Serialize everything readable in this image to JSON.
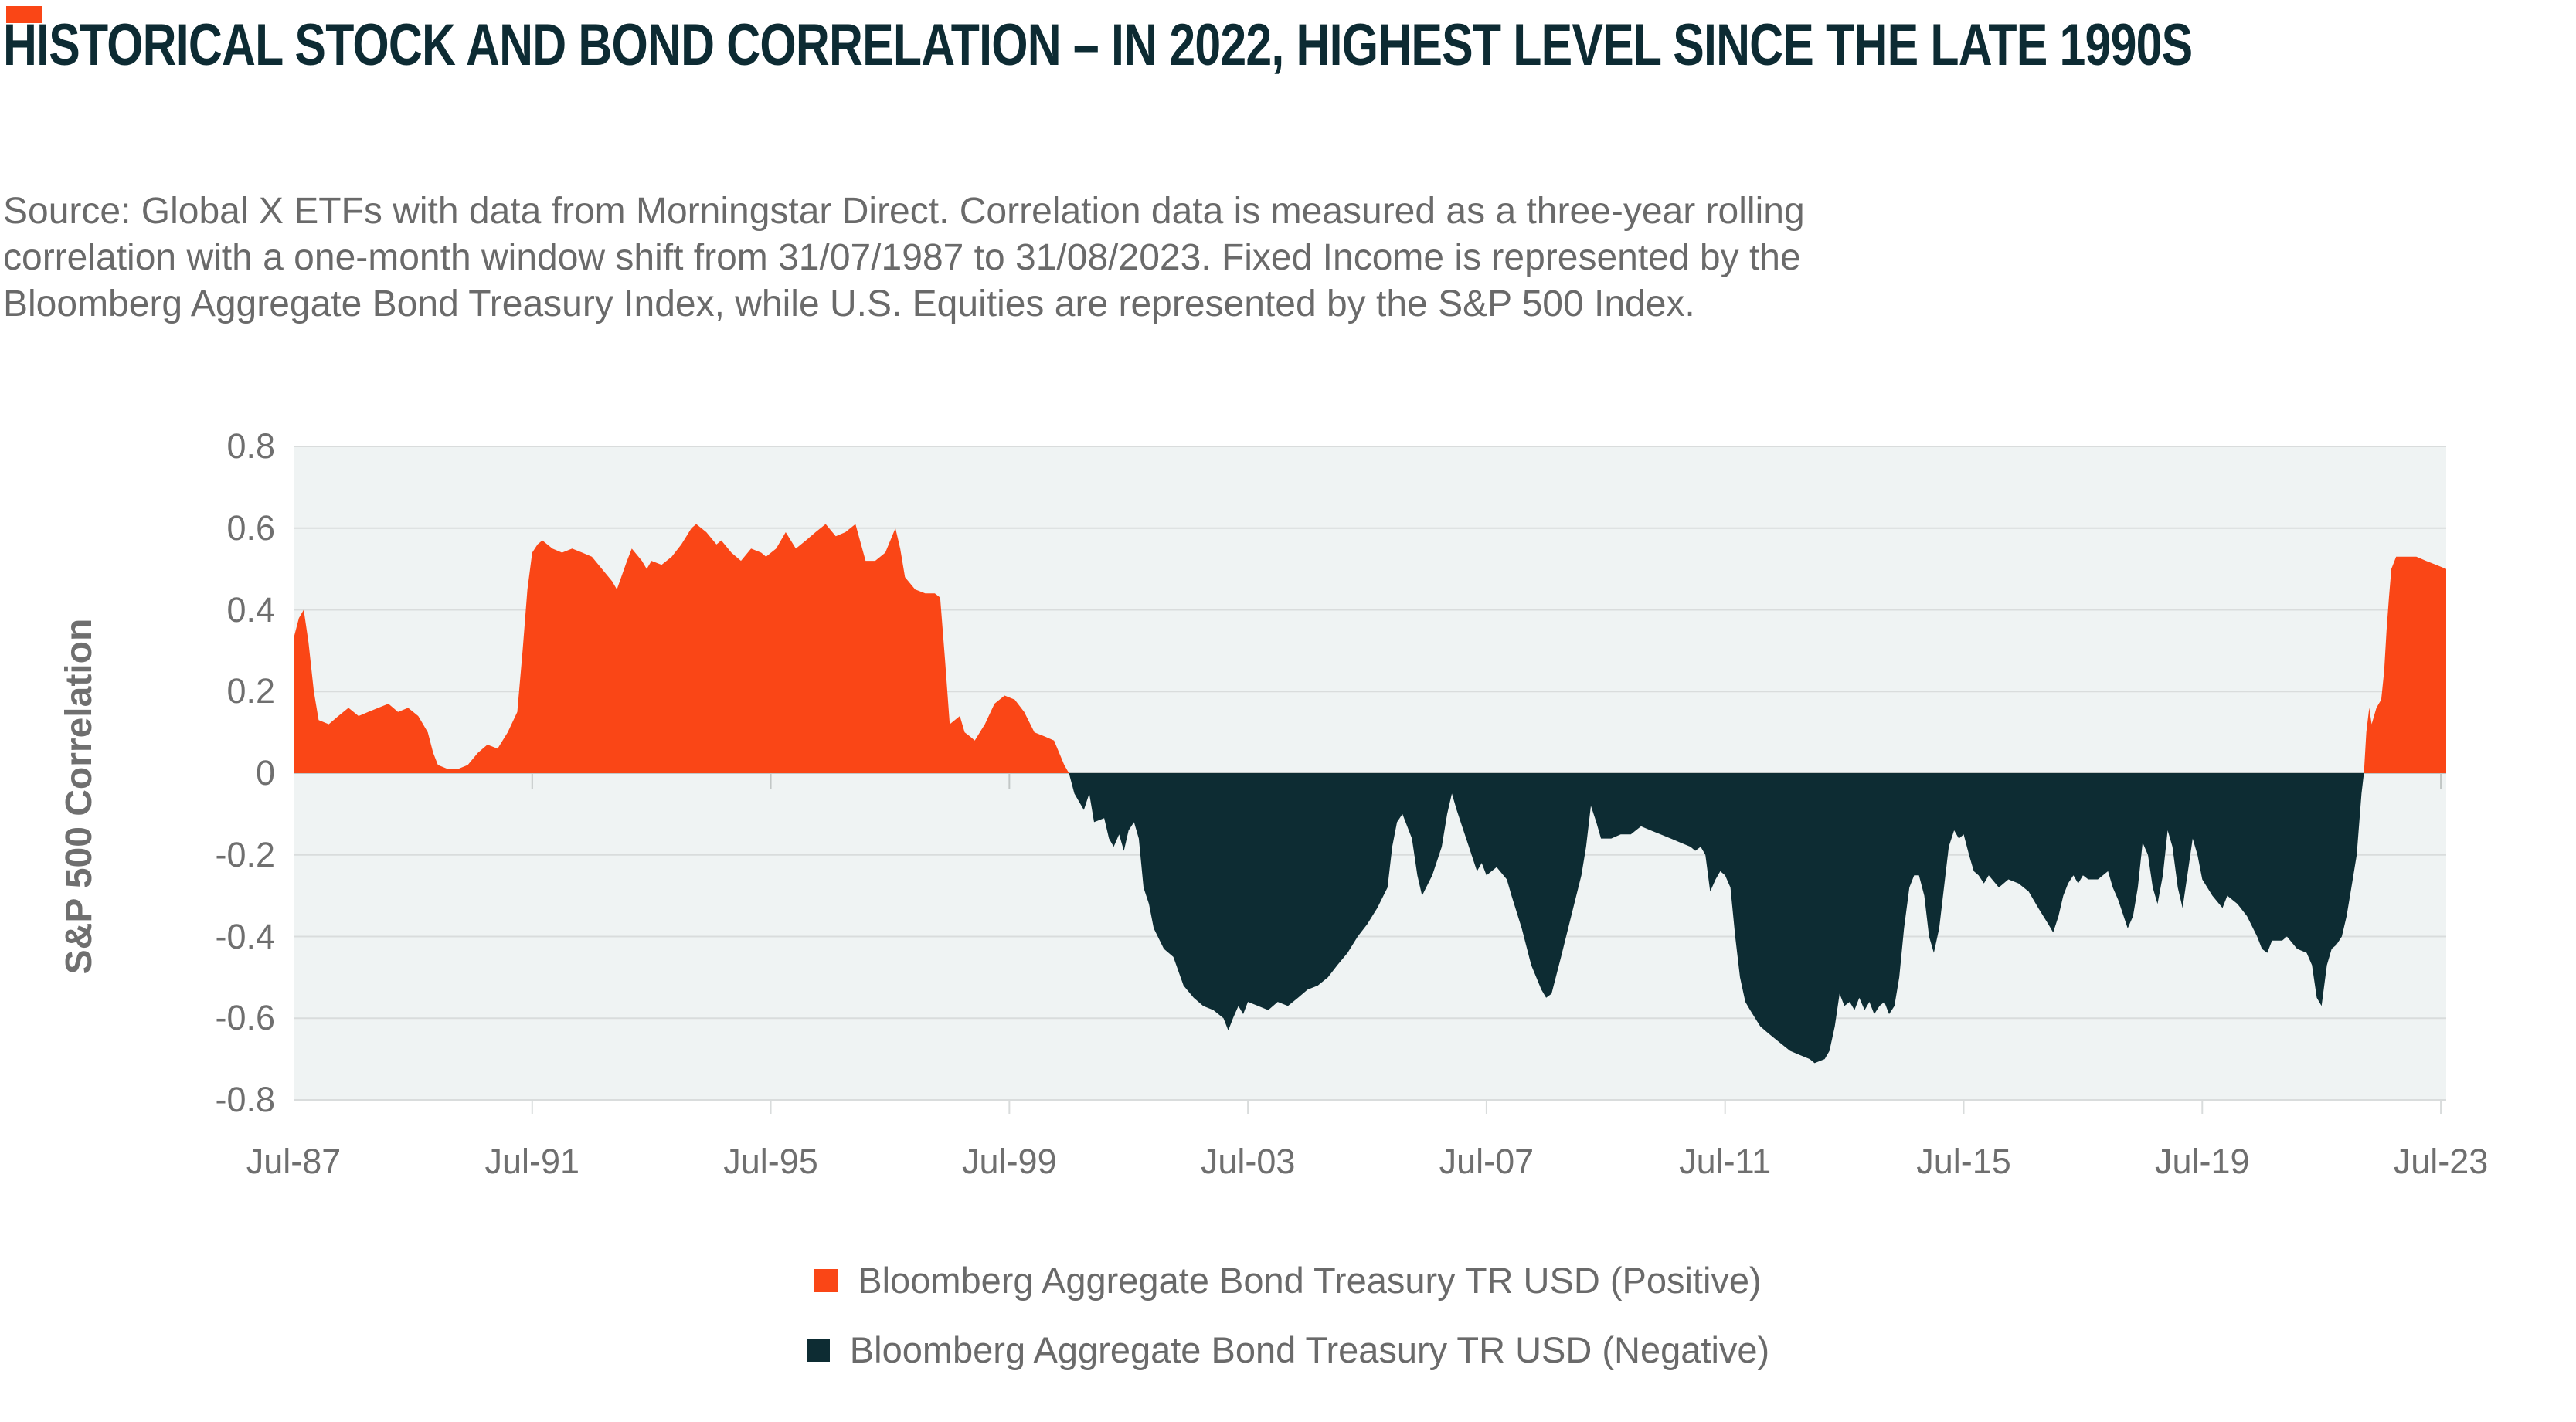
{
  "header": {
    "title": "HISTORICAL STOCK AND BOND CORRELATION – IN 2022, HIGHEST LEVEL SINCE THE LATE 1990S",
    "source_lines": [
      "Source: Global X ETFs with data from Morningstar Direct. Correlation data is measured as a three-year rolling",
      "correlation with a one-month window shift from 31/07/1987 to 31/08/2023. Fixed Income is represented by the",
      "Bloomberg Aggregate Bond Treasury Index, while U.S. Equities are represented by the S&P 500 Index."
    ]
  },
  "colors": {
    "accent_orange": "#FA4616",
    "dark_navy": "#0D2C33",
    "title_text": "#0D2B33",
    "body_text": "#6A6A6A",
    "axis_text": "#6F6F6F",
    "plot_bg": "#EFF3F3",
    "gridline": "#D9DCDC",
    "zero_line": "#C2C7C6"
  },
  "chart_data": {
    "type": "area",
    "title": "",
    "xlabel": "",
    "ylabel": "S&P 500 Correlation",
    "ylim": [
      -0.8,
      0.8
    ],
    "grid": true,
    "legend_position": "bottom",
    "y_ticks": [
      "0.8",
      "0.6",
      "0.4",
      "0.2",
      "0",
      "-0.2",
      "-0.4",
      "-0.6",
      "-0.8"
    ],
    "x_tick_labels": [
      "Jul-87",
      "Jul-91",
      "Jul-95",
      "Jul-99",
      "Jul-03",
      "Jul-07",
      "Jul-11",
      "Jul-15",
      "Jul-19",
      "Jul-23"
    ],
    "x_tick_years": [
      1987.58,
      1991.58,
      1995.58,
      1999.58,
      2003.58,
      2007.58,
      2011.58,
      2015.58,
      2019.58,
      2023.58
    ],
    "x_range": [
      1987.58,
      2023.67
    ],
    "series": [
      {
        "name": "Bloomberg Aggregate Bond Treasury TR USD (Positive)",
        "color": "#FA4616",
        "region": "values above 0"
      },
      {
        "name": "Bloomberg Aggregate Bond Treasury TR USD (Negative)",
        "color": "#0D2C33",
        "region": "values below 0"
      }
    ],
    "points": [
      [
        1987.58,
        0.33
      ],
      [
        1987.67,
        0.38
      ],
      [
        1987.75,
        0.4
      ],
      [
        1987.83,
        0.32
      ],
      [
        1987.92,
        0.2
      ],
      [
        1988.0,
        0.13
      ],
      [
        1988.17,
        0.12
      ],
      [
        1988.33,
        0.14
      ],
      [
        1988.5,
        0.16
      ],
      [
        1988.67,
        0.14
      ],
      [
        1988.83,
        0.15
      ],
      [
        1989.0,
        0.16
      ],
      [
        1989.17,
        0.17
      ],
      [
        1989.33,
        0.15
      ],
      [
        1989.5,
        0.16
      ],
      [
        1989.67,
        0.14
      ],
      [
        1989.83,
        0.1
      ],
      [
        1989.92,
        0.05
      ],
      [
        1990.0,
        0.02
      ],
      [
        1990.17,
        0.01
      ],
      [
        1990.33,
        0.01
      ],
      [
        1990.5,
        0.02
      ],
      [
        1990.67,
        0.05
      ],
      [
        1990.83,
        0.07
      ],
      [
        1991.0,
        0.06
      ],
      [
        1991.17,
        0.1
      ],
      [
        1991.33,
        0.15
      ],
      [
        1991.42,
        0.3
      ],
      [
        1991.5,
        0.45
      ],
      [
        1991.58,
        0.54
      ],
      [
        1991.67,
        0.56
      ],
      [
        1991.75,
        0.57
      ],
      [
        1991.92,
        0.55
      ],
      [
        1992.08,
        0.54
      ],
      [
        1992.25,
        0.55
      ],
      [
        1992.42,
        0.54
      ],
      [
        1992.58,
        0.53
      ],
      [
        1992.75,
        0.5
      ],
      [
        1992.92,
        0.47
      ],
      [
        1993.0,
        0.45
      ],
      [
        1993.17,
        0.52
      ],
      [
        1993.25,
        0.55
      ],
      [
        1993.42,
        0.52
      ],
      [
        1993.5,
        0.5
      ],
      [
        1993.58,
        0.52
      ],
      [
        1993.75,
        0.51
      ],
      [
        1993.92,
        0.53
      ],
      [
        1994.08,
        0.56
      ],
      [
        1994.25,
        0.6
      ],
      [
        1994.33,
        0.61
      ],
      [
        1994.5,
        0.59
      ],
      [
        1994.67,
        0.56
      ],
      [
        1994.75,
        0.57
      ],
      [
        1994.92,
        0.54
      ],
      [
        1995.08,
        0.52
      ],
      [
        1995.25,
        0.55
      ],
      [
        1995.42,
        0.54
      ],
      [
        1995.5,
        0.53
      ],
      [
        1995.67,
        0.55
      ],
      [
        1995.83,
        0.59
      ],
      [
        1996.0,
        0.55
      ],
      [
        1996.17,
        0.57
      ],
      [
        1996.33,
        0.59
      ],
      [
        1996.5,
        0.61
      ],
      [
        1996.67,
        0.58
      ],
      [
        1996.83,
        0.59
      ],
      [
        1997.0,
        0.61
      ],
      [
        1997.17,
        0.52
      ],
      [
        1997.33,
        0.52
      ],
      [
        1997.5,
        0.54
      ],
      [
        1997.67,
        0.6
      ],
      [
        1997.75,
        0.55
      ],
      [
        1997.83,
        0.48
      ],
      [
        1998.0,
        0.45
      ],
      [
        1998.17,
        0.44
      ],
      [
        1998.33,
        0.44
      ],
      [
        1998.42,
        0.43
      ],
      [
        1998.5,
        0.28
      ],
      [
        1998.58,
        0.12
      ],
      [
        1998.75,
        0.14
      ],
      [
        1998.83,
        0.1
      ],
      [
        1998.92,
        0.09
      ],
      [
        1999.0,
        0.08
      ],
      [
        1999.17,
        0.12
      ],
      [
        1999.33,
        0.17
      ],
      [
        1999.5,
        0.19
      ],
      [
        1999.67,
        0.18
      ],
      [
        1999.83,
        0.15
      ],
      [
        2000.0,
        0.1
      ],
      [
        2000.17,
        0.09
      ],
      [
        2000.33,
        0.08
      ],
      [
        2000.5,
        0.02
      ],
      [
        2000.58,
        0.0
      ],
      [
        2000.67,
        -0.05
      ],
      [
        2000.83,
        -0.09
      ],
      [
        2000.92,
        -0.05
      ],
      [
        2001.0,
        -0.12
      ],
      [
        2001.17,
        -0.11
      ],
      [
        2001.25,
        -0.16
      ],
      [
        2001.33,
        -0.18
      ],
      [
        2001.42,
        -0.15
      ],
      [
        2001.5,
        -0.19
      ],
      [
        2001.58,
        -0.14
      ],
      [
        2001.67,
        -0.12
      ],
      [
        2001.75,
        -0.16
      ],
      [
        2001.83,
        -0.28
      ],
      [
        2001.92,
        -0.32
      ],
      [
        2002.0,
        -0.38
      ],
      [
        2002.17,
        -0.43
      ],
      [
        2002.33,
        -0.45
      ],
      [
        2002.5,
        -0.52
      ],
      [
        2002.67,
        -0.55
      ],
      [
        2002.83,
        -0.57
      ],
      [
        2003.0,
        -0.58
      ],
      [
        2003.17,
        -0.6
      ],
      [
        2003.25,
        -0.63
      ],
      [
        2003.33,
        -0.6
      ],
      [
        2003.42,
        -0.57
      ],
      [
        2003.5,
        -0.59
      ],
      [
        2003.58,
        -0.56
      ],
      [
        2003.75,
        -0.57
      ],
      [
        2003.92,
        -0.58
      ],
      [
        2004.08,
        -0.56
      ],
      [
        2004.25,
        -0.57
      ],
      [
        2004.42,
        -0.55
      ],
      [
        2004.58,
        -0.53
      ],
      [
        2004.75,
        -0.52
      ],
      [
        2004.92,
        -0.5
      ],
      [
        2005.08,
        -0.47
      ],
      [
        2005.25,
        -0.44
      ],
      [
        2005.42,
        -0.4
      ],
      [
        2005.58,
        -0.37
      ],
      [
        2005.75,
        -0.33
      ],
      [
        2005.92,
        -0.28
      ],
      [
        2006.0,
        -0.18
      ],
      [
        2006.08,
        -0.12
      ],
      [
        2006.17,
        -0.1
      ],
      [
        2006.33,
        -0.16
      ],
      [
        2006.42,
        -0.25
      ],
      [
        2006.5,
        -0.3
      ],
      [
        2006.67,
        -0.25
      ],
      [
        2006.83,
        -0.18
      ],
      [
        2006.92,
        -0.1
      ],
      [
        2007.0,
        -0.05
      ],
      [
        2007.08,
        -0.09
      ],
      [
        2007.17,
        -0.13
      ],
      [
        2007.33,
        -0.2
      ],
      [
        2007.42,
        -0.24
      ],
      [
        2007.5,
        -0.22
      ],
      [
        2007.58,
        -0.25
      ],
      [
        2007.75,
        -0.23
      ],
      [
        2007.92,
        -0.26
      ],
      [
        2008.0,
        -0.3
      ],
      [
        2008.17,
        -0.38
      ],
      [
        2008.33,
        -0.47
      ],
      [
        2008.5,
        -0.53
      ],
      [
        2008.58,
        -0.55
      ],
      [
        2008.67,
        -0.54
      ],
      [
        2008.83,
        -0.45
      ],
      [
        2009.0,
        -0.35
      ],
      [
        2009.17,
        -0.25
      ],
      [
        2009.25,
        -0.18
      ],
      [
        2009.33,
        -0.08
      ],
      [
        2009.42,
        -0.12
      ],
      [
        2009.5,
        -0.16
      ],
      [
        2009.67,
        -0.16
      ],
      [
        2009.83,
        -0.15
      ],
      [
        2010.0,
        -0.15
      ],
      [
        2010.17,
        -0.13
      ],
      [
        2010.33,
        -0.14
      ],
      [
        2010.5,
        -0.15
      ],
      [
        2010.67,
        -0.16
      ],
      [
        2010.83,
        -0.17
      ],
      [
        2011.0,
        -0.18
      ],
      [
        2011.08,
        -0.19
      ],
      [
        2011.17,
        -0.18
      ],
      [
        2011.25,
        -0.2
      ],
      [
        2011.33,
        -0.29
      ],
      [
        2011.42,
        -0.26
      ],
      [
        2011.5,
        -0.24
      ],
      [
        2011.58,
        -0.25
      ],
      [
        2011.67,
        -0.28
      ],
      [
        2011.75,
        -0.4
      ],
      [
        2011.83,
        -0.5
      ],
      [
        2011.92,
        -0.56
      ],
      [
        2012.0,
        -0.58
      ],
      [
        2012.17,
        -0.62
      ],
      [
        2012.33,
        -0.64
      ],
      [
        2012.5,
        -0.66
      ],
      [
        2012.67,
        -0.68
      ],
      [
        2012.83,
        -0.69
      ],
      [
        2013.0,
        -0.7
      ],
      [
        2013.08,
        -0.71
      ],
      [
        2013.25,
        -0.7
      ],
      [
        2013.33,
        -0.68
      ],
      [
        2013.42,
        -0.62
      ],
      [
        2013.5,
        -0.54
      ],
      [
        2013.58,
        -0.57
      ],
      [
        2013.67,
        -0.56
      ],
      [
        2013.75,
        -0.58
      ],
      [
        2013.83,
        -0.55
      ],
      [
        2013.92,
        -0.58
      ],
      [
        2014.0,
        -0.56
      ],
      [
        2014.08,
        -0.59
      ],
      [
        2014.17,
        -0.57
      ],
      [
        2014.25,
        -0.56
      ],
      [
        2014.33,
        -0.59
      ],
      [
        2014.42,
        -0.57
      ],
      [
        2014.5,
        -0.5
      ],
      [
        2014.58,
        -0.38
      ],
      [
        2014.67,
        -0.28
      ],
      [
        2014.75,
        -0.25
      ],
      [
        2014.83,
        -0.25
      ],
      [
        2014.92,
        -0.3
      ],
      [
        2015.0,
        -0.4
      ],
      [
        2015.08,
        -0.44
      ],
      [
        2015.17,
        -0.38
      ],
      [
        2015.25,
        -0.28
      ],
      [
        2015.33,
        -0.18
      ],
      [
        2015.42,
        -0.14
      ],
      [
        2015.5,
        -0.16
      ],
      [
        2015.58,
        -0.15
      ],
      [
        2015.67,
        -0.2
      ],
      [
        2015.75,
        -0.24
      ],
      [
        2015.83,
        -0.25
      ],
      [
        2015.92,
        -0.27
      ],
      [
        2016.0,
        -0.25
      ],
      [
        2016.17,
        -0.28
      ],
      [
        2016.33,
        -0.26
      ],
      [
        2016.5,
        -0.27
      ],
      [
        2016.67,
        -0.29
      ],
      [
        2016.83,
        -0.33
      ],
      [
        2017.0,
        -0.37
      ],
      [
        2017.08,
        -0.39
      ],
      [
        2017.17,
        -0.35
      ],
      [
        2017.25,
        -0.3
      ],
      [
        2017.33,
        -0.27
      ],
      [
        2017.42,
        -0.25
      ],
      [
        2017.5,
        -0.27
      ],
      [
        2017.58,
        -0.25
      ],
      [
        2017.67,
        -0.26
      ],
      [
        2017.83,
        -0.26
      ],
      [
        2018.0,
        -0.24
      ],
      [
        2018.08,
        -0.28
      ],
      [
        2018.17,
        -0.31
      ],
      [
        2018.33,
        -0.38
      ],
      [
        2018.42,
        -0.35
      ],
      [
        2018.5,
        -0.28
      ],
      [
        2018.58,
        -0.17
      ],
      [
        2018.67,
        -0.2
      ],
      [
        2018.75,
        -0.28
      ],
      [
        2018.83,
        -0.32
      ],
      [
        2018.92,
        -0.25
      ],
      [
        2019.0,
        -0.14
      ],
      [
        2019.08,
        -0.18
      ],
      [
        2019.17,
        -0.28
      ],
      [
        2019.25,
        -0.33
      ],
      [
        2019.33,
        -0.25
      ],
      [
        2019.42,
        -0.16
      ],
      [
        2019.5,
        -0.2
      ],
      [
        2019.58,
        -0.26
      ],
      [
        2019.75,
        -0.3
      ],
      [
        2019.92,
        -0.33
      ],
      [
        2020.0,
        -0.3
      ],
      [
        2020.17,
        -0.32
      ],
      [
        2020.33,
        -0.35
      ],
      [
        2020.5,
        -0.4
      ],
      [
        2020.58,
        -0.43
      ],
      [
        2020.67,
        -0.44
      ],
      [
        2020.75,
        -0.41
      ],
      [
        2020.92,
        -0.41
      ],
      [
        2021.0,
        -0.4
      ],
      [
        2021.17,
        -0.43
      ],
      [
        2021.33,
        -0.44
      ],
      [
        2021.42,
        -0.47
      ],
      [
        2021.5,
        -0.55
      ],
      [
        2021.58,
        -0.57
      ],
      [
        2021.67,
        -0.47
      ],
      [
        2021.75,
        -0.43
      ],
      [
        2021.83,
        -0.42
      ],
      [
        2021.92,
        -0.4
      ],
      [
        2022.0,
        -0.35
      ],
      [
        2022.08,
        -0.28
      ],
      [
        2022.17,
        -0.2
      ],
      [
        2022.25,
        -0.05
      ],
      [
        2022.29,
        0.0
      ],
      [
        2022.33,
        0.1
      ],
      [
        2022.38,
        0.16
      ],
      [
        2022.42,
        0.12
      ],
      [
        2022.5,
        0.16
      ],
      [
        2022.58,
        0.18
      ],
      [
        2022.63,
        0.25
      ],
      [
        2022.67,
        0.35
      ],
      [
        2022.71,
        0.43
      ],
      [
        2022.75,
        0.5
      ],
      [
        2022.83,
        0.53
      ],
      [
        2023.0,
        0.53
      ],
      [
        2023.17,
        0.53
      ],
      [
        2023.33,
        0.52
      ],
      [
        2023.5,
        0.51
      ],
      [
        2023.67,
        0.5
      ]
    ]
  }
}
